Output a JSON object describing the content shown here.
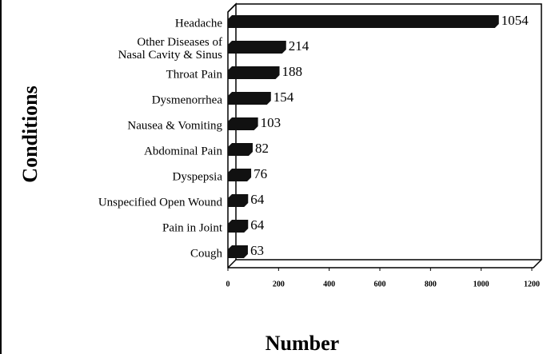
{
  "chart_data": {
    "type": "bar",
    "orientation": "horizontal",
    "x_label": "Number",
    "y_label": "Conditions",
    "categories": [
      "Headache",
      "Other Diseases of\nNasal Cavity & Sinus",
      "Throat Pain",
      "Dysmenorrhea",
      "Nausea & Vomiting",
      "Abdominal Pain",
      "Dyspepsia",
      "Unspecified Open Wound",
      "Pain in Joint",
      "Cough"
    ],
    "values": [
      1054,
      214,
      188,
      154,
      103,
      82,
      76,
      64,
      64,
      63
    ],
    "color": "#111111",
    "xlim": [
      0,
      1200
    ],
    "xticks": [
      0,
      200,
      400,
      600,
      800,
      1000,
      1200
    ]
  }
}
